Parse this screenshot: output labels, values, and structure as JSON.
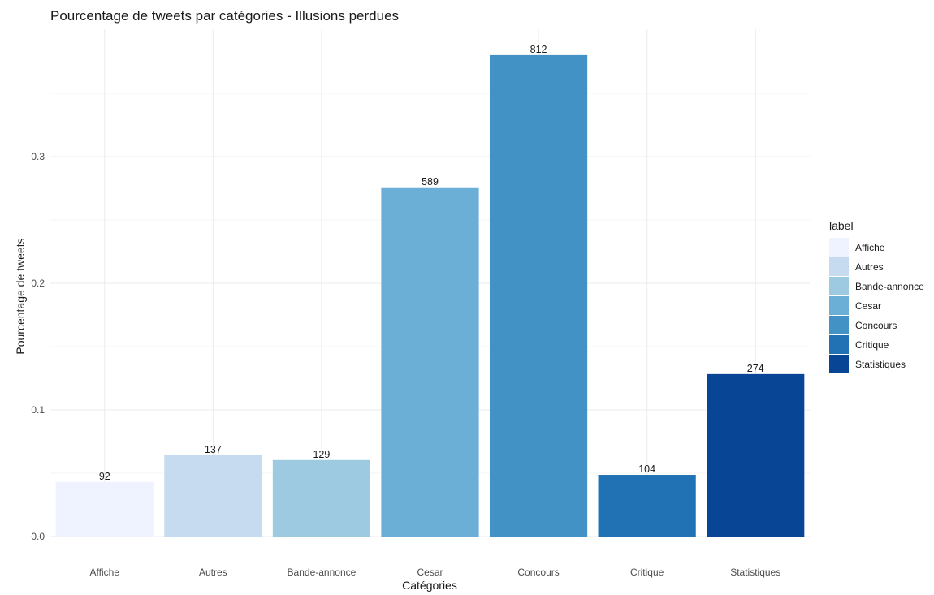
{
  "chart_data": {
    "type": "bar",
    "title": "Pourcentage de tweets par catégories - Illusions perdues",
    "xlabel": "Catégories",
    "ylabel": "Pourcentage de tweets",
    "categories": [
      "Affiche",
      "Autres",
      "Bande-annonce",
      "Cesar",
      "Concours",
      "Critique",
      "Statistiques"
    ],
    "values": [
      0.0431,
      0.0642,
      0.0604,
      0.2758,
      0.3802,
      0.0487,
      0.1283
    ],
    "bar_labels": [
      "92",
      "137",
      "129",
      "589",
      "812",
      "104",
      "274"
    ],
    "colors": [
      "#eff3ff",
      "#c6dbef",
      "#9ecae1",
      "#6baed6",
      "#4292c6",
      "#2171b5",
      "#084594"
    ],
    "ylim": [
      0,
      0.4
    ],
    "yticks": [
      0.0,
      0.1,
      0.2,
      0.3
    ],
    "ytick_labels": [
      "0.0",
      "0.1",
      "0.2",
      "0.3"
    ],
    "grid": true,
    "legend": {
      "title": "label",
      "position": "right",
      "entries": [
        "Affiche",
        "Autres",
        "Bande-annonce",
        "Cesar",
        "Concours",
        "Critique",
        "Statistiques"
      ]
    }
  }
}
